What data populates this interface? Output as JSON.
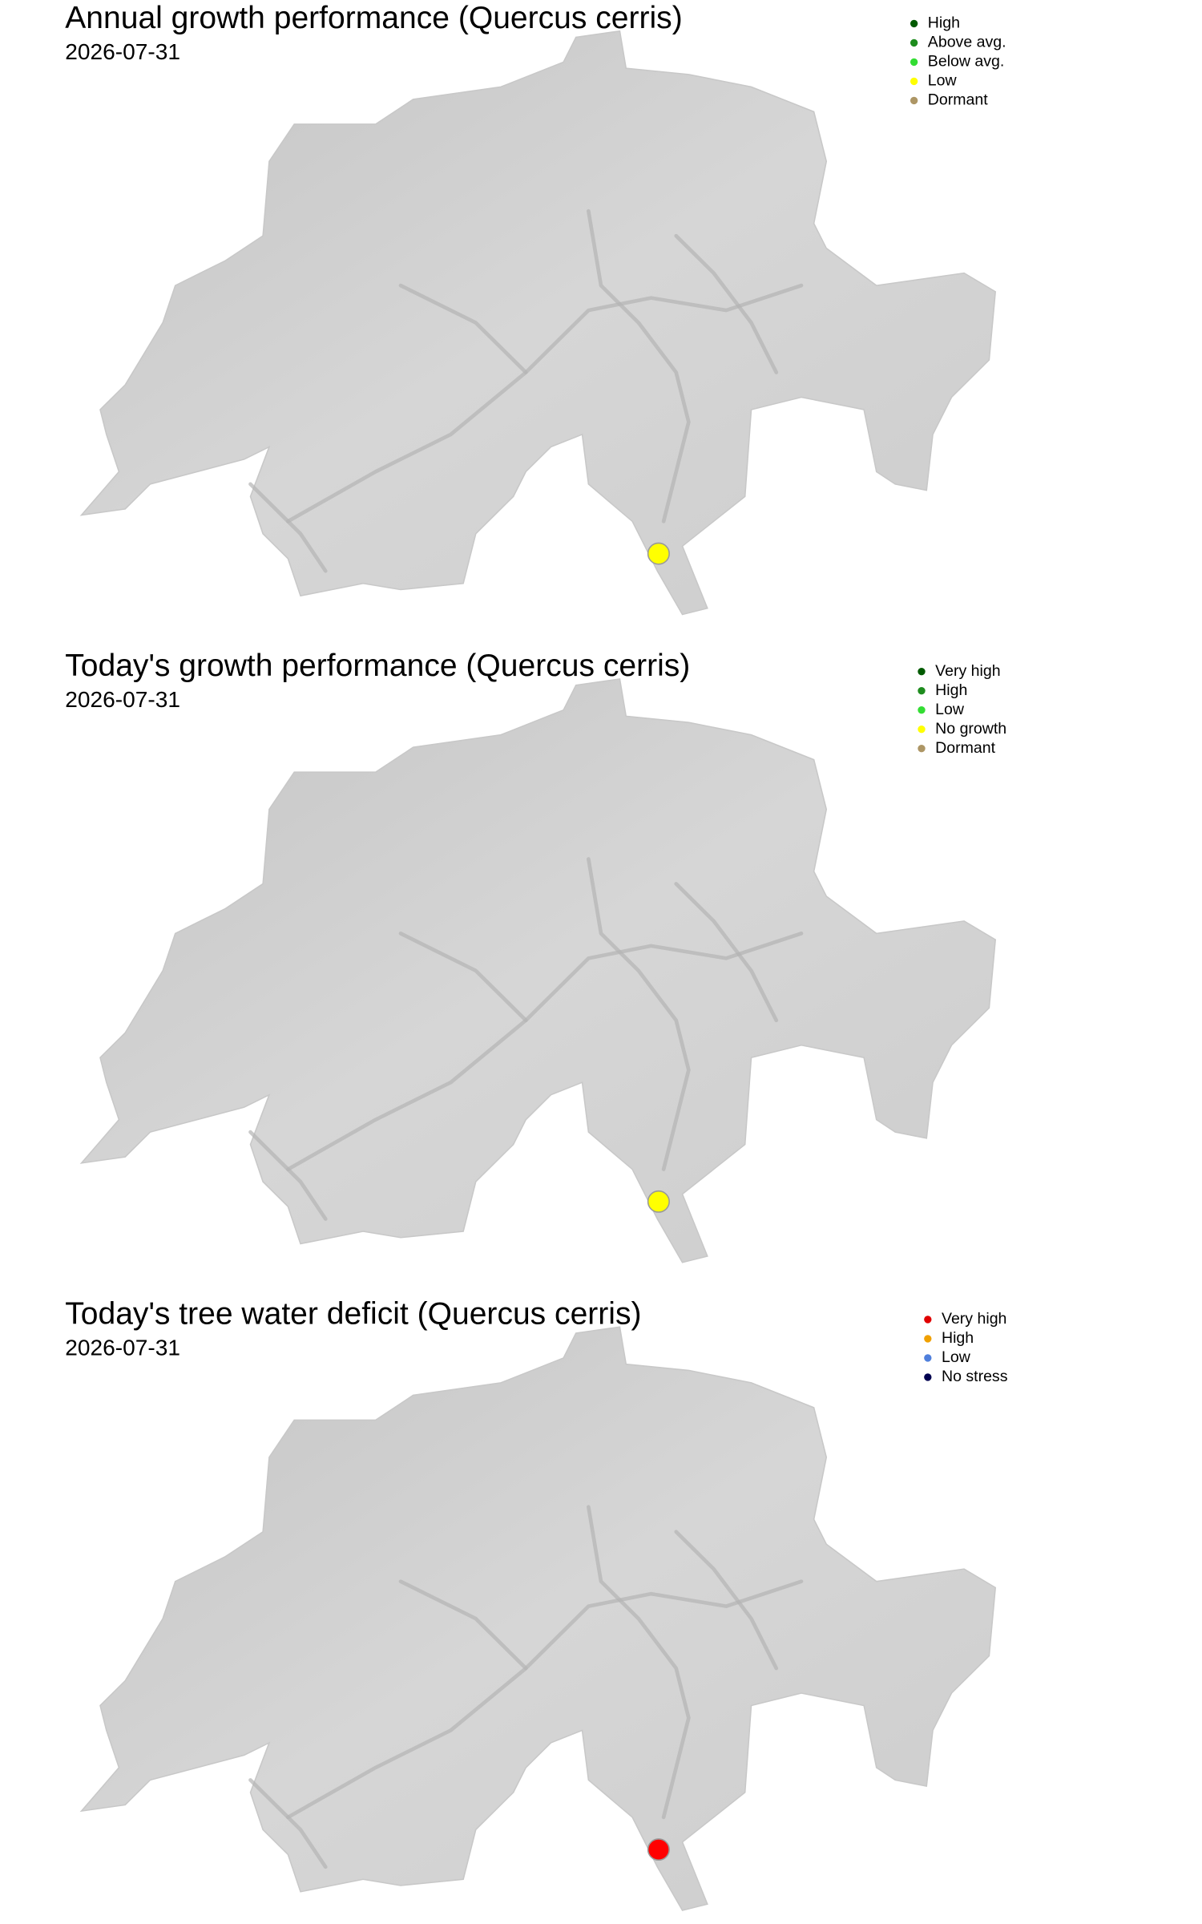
{
  "panels": [
    {
      "title": "Annual growth performance (Quercus cerris)",
      "date": "2026-07-31",
      "legend": [
        {
          "label": "High",
          "color": "#005a00"
        },
        {
          "label": "Above avg.",
          "color": "#1e8c1e"
        },
        {
          "label": "Below avg.",
          "color": "#33dd33"
        },
        {
          "label": "Low",
          "color": "#ffff00"
        },
        {
          "label": "Dormant",
          "color": "#ad9665"
        }
      ],
      "marker_color": "#ffff00"
    },
    {
      "title": "Today's growth performance (Quercus cerris)",
      "date": "2026-07-31",
      "legend": [
        {
          "label": "Very high",
          "color": "#005a00"
        },
        {
          "label": "High",
          "color": "#1e8c1e"
        },
        {
          "label": "Low",
          "color": "#33dd33"
        },
        {
          "label": "No growth",
          "color": "#ffff00"
        },
        {
          "label": "Dormant",
          "color": "#ad9665"
        }
      ],
      "marker_color": "#ffff00"
    },
    {
      "title": "Today's tree water deficit (Quercus cerris)",
      "date": "2026-07-31",
      "legend": [
        {
          "label": "Very high",
          "color": "#e00000"
        },
        {
          "label": "High",
          "color": "#f0a000"
        },
        {
          "label": "Low",
          "color": "#4f7fdc"
        },
        {
          "label": "No stress",
          "color": "#00004f"
        }
      ],
      "marker_color": "#ff0000"
    }
  ]
}
